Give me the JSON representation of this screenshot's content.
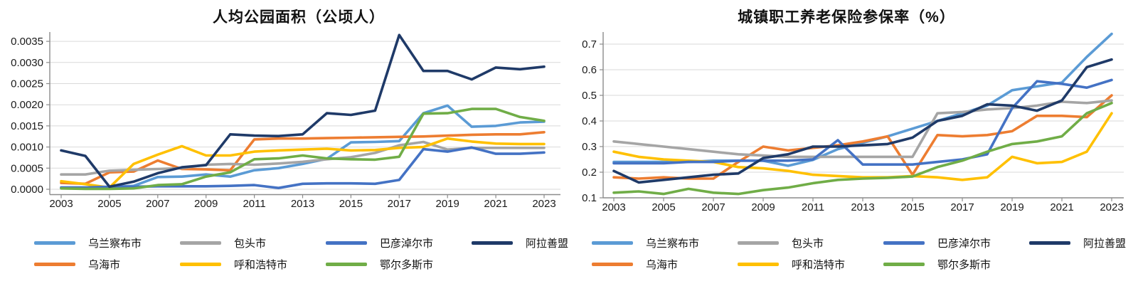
{
  "charts": [
    {
      "title": "人均公园面积（公顷人）",
      "y_axis": {
        "labels": [
          "0.0000",
          "0.0005",
          "0.0010",
          "0.0015",
          "0.0020",
          "0.0025",
          "0.0030",
          "0.0035"
        ],
        "min": 0,
        "step": 0.0005
      },
      "x_axis": {
        "years": [
          2003,
          2004,
          2005,
          2006,
          2007,
          2008,
          2009,
          2010,
          2011,
          2012,
          2013,
          2014,
          2015,
          2016,
          2017,
          2018,
          2019,
          2020,
          2021,
          2022,
          2023
        ],
        "tick_labels": [
          "2003",
          "2005",
          "2007",
          "2009",
          "2011",
          "2013",
          "2015",
          "2017",
          "2019",
          "2021",
          "2023"
        ]
      },
      "series": [
        {
          "name": "乌兰察布市",
          "color": "#5B9BD5",
          "values": [
            4e-05,
            4e-05,
            5e-05,
            8e-05,
            0.00029,
            0.0003,
            0.00035,
            0.0003,
            0.00045,
            0.0005,
            0.0006,
            0.00072,
            0.00111,
            0.00112,
            0.00114,
            0.0018,
            0.00198,
            0.00148,
            0.0015,
            0.00158,
            0.0016
          ]
        },
        {
          "name": "乌海市",
          "color": "#ED7D31",
          "values": [
            0.00015,
            0.00013,
            0.0004,
            0.00042,
            0.00068,
            0.00048,
            0.00047,
            0.00045,
            0.00118,
            0.0012,
            0.0012,
            0.00121,
            0.00122,
            0.00123,
            0.00124,
            0.00125,
            0.00127,
            0.00129,
            0.0013,
            0.0013,
            0.00135
          ]
        },
        {
          "name": "包头市",
          "color": "#A5A5A5",
          "values": [
            0.00035,
            0.00035,
            0.00044,
            0.00046,
            0.00048,
            0.0005,
            0.00058,
            0.0006,
            0.00058,
            0.00061,
            0.00065,
            0.00071,
            0.00076,
            0.00086,
            0.00104,
            0.00112,
            0.00094,
            0.00098,
            0.00098,
            0.00098,
            0.00098
          ]
        },
        {
          "name": "呼和浩特市",
          "color": "#FFC000",
          "values": [
            0.00019,
            0.00012,
            4e-05,
            0.0006,
            0.00082,
            0.00102,
            0.0008,
            0.0008,
            0.00089,
            0.00092,
            0.00094,
            0.00096,
            0.00092,
            0.00093,
            0.00098,
            0.001,
            0.0012,
            0.00113,
            0.00108,
            0.00107,
            0.00107
          ]
        },
        {
          "name": "巴彦淖尔市",
          "color": "#4472C4",
          "values": [
            4e-05,
            4e-05,
            6e-05,
            6e-05,
            7e-05,
            7e-05,
            7e-05,
            8e-05,
            0.0001,
            3e-05,
            0.00013,
            0.00014,
            0.00014,
            0.00013,
            0.00022,
            0.00095,
            0.00089,
            0.00099,
            0.00084,
            0.00084,
            0.00087
          ]
        },
        {
          "name": "鄂尔多斯市",
          "color": "#70AD47",
          "values": [
            2e-05,
            1e-05,
            1e-05,
            2e-05,
            0.0001,
            0.00012,
            0.0003,
            0.0004,
            0.00071,
            0.00073,
            0.0008,
            0.00073,
            0.00071,
            0.0007,
            0.00077,
            0.00179,
            0.0018,
            0.0019,
            0.0019,
            0.00171,
            0.00162
          ]
        },
        {
          "name": "阿拉善盟",
          "color": "#1F3A68",
          "values": [
            0.00092,
            0.00079,
            6e-05,
            0.00018,
            0.00038,
            0.00052,
            0.00057,
            0.0013,
            0.00127,
            0.00126,
            0.0013,
            0.0018,
            0.00176,
            0.00186,
            0.00365,
            0.0028,
            0.0028,
            0.0026,
            0.00288,
            0.00284,
            0.0029
          ]
        }
      ],
      "legend_rows": [
        [
          {
            "label": "乌兰察布市",
            "color": "#5B9BD5"
          },
          {
            "label": "包头市",
            "color": "#A5A5A5"
          },
          {
            "label": "巴彦淖尔市",
            "color": "#4472C4"
          },
          {
            "label": "阿拉善盟",
            "color": "#1F3A68"
          }
        ],
        [
          {
            "label": "乌海市",
            "color": "#ED7D31"
          },
          {
            "label": "呼和浩特市",
            "color": "#FFC000"
          },
          {
            "label": "鄂尔多斯市",
            "color": "#70AD47"
          }
        ]
      ],
      "chart_data": {
        "type": "line",
        "title": "人均公园面积（公顷人）",
        "x": [
          2003,
          2004,
          2005,
          2006,
          2007,
          2008,
          2009,
          2010,
          2011,
          2012,
          2013,
          2014,
          2015,
          2016,
          2017,
          2018,
          2019,
          2020,
          2021,
          2022,
          2023
        ],
        "ylim": [
          0,
          0.0035
        ],
        "grid": true,
        "legend_position": "bottom"
      }
    },
    {
      "title": "城镇职工养老保险参保率（%）",
      "y_axis": {
        "labels": [
          "0.1",
          "0.2",
          "0.3",
          "0.4",
          "0.5",
          "0.6",
          "0.7"
        ],
        "min": 0.1,
        "step": 0.1
      },
      "x_axis": {
        "years": [
          2003,
          2004,
          2005,
          2006,
          2007,
          2008,
          2009,
          2010,
          2011,
          2012,
          2013,
          2014,
          2015,
          2016,
          2017,
          2018,
          2019,
          2020,
          2021,
          2022,
          2023
        ],
        "tick_labels": [
          "2003",
          "2005",
          "2007",
          "2009",
          "2011",
          "2013",
          "2015",
          "2017",
          "2019",
          "2021",
          "2023"
        ]
      },
      "series": [
        {
          "name": "乌兰察布市",
          "color": "#5B9BD5",
          "values": [
            0.24,
            0.24,
            0.24,
            0.24,
            0.245,
            0.245,
            0.245,
            0.225,
            0.248,
            0.29,
            0.315,
            0.34,
            0.37,
            0.4,
            0.43,
            0.46,
            0.52,
            0.535,
            0.55,
            0.65,
            0.74
          ]
        },
        {
          "name": "乌海市",
          "color": "#ED7D31",
          "values": [
            0.18,
            0.175,
            0.18,
            0.175,
            0.175,
            0.24,
            0.3,
            0.285,
            0.295,
            0.305,
            0.32,
            0.34,
            0.19,
            0.345,
            0.34,
            0.345,
            0.36,
            0.42,
            0.42,
            0.415,
            0.5
          ]
        },
        {
          "name": "包头市",
          "color": "#A5A5A5",
          "values": [
            0.32,
            0.31,
            0.3,
            0.29,
            0.28,
            0.27,
            0.265,
            0.26,
            0.26,
            0.26,
            0.26,
            0.26,
            0.26,
            0.43,
            0.435,
            0.445,
            0.45,
            0.46,
            0.475,
            0.47,
            0.48
          ]
        },
        {
          "name": "呼和浩特市",
          "color": "#FFC000",
          "values": [
            0.28,
            0.26,
            0.25,
            0.245,
            0.24,
            0.22,
            0.215,
            0.205,
            0.19,
            0.185,
            0.18,
            0.18,
            0.185,
            0.18,
            0.17,
            0.18,
            0.26,
            0.235,
            0.24,
            0.28,
            0.43
          ]
        },
        {
          "name": "巴彦淖尔市",
          "color": "#4472C4",
          "values": [
            0.235,
            0.235,
            0.235,
            0.24,
            0.24,
            0.245,
            0.245,
            0.245,
            0.25,
            0.325,
            0.23,
            0.23,
            0.23,
            0.24,
            0.25,
            0.27,
            0.45,
            0.555,
            0.545,
            0.53,
            0.56
          ]
        },
        {
          "name": "鄂尔多斯市",
          "color": "#70AD47",
          "values": [
            0.12,
            0.125,
            0.115,
            0.135,
            0.12,
            0.115,
            0.13,
            0.14,
            0.157,
            0.17,
            0.175,
            0.178,
            0.183,
            0.22,
            0.245,
            0.28,
            0.31,
            0.32,
            0.34,
            0.43,
            0.47
          ]
        },
        {
          "name": "阿拉善盟",
          "color": "#1F3A68",
          "values": [
            0.205,
            0.16,
            0.17,
            0.18,
            0.19,
            0.195,
            0.255,
            0.27,
            0.3,
            0.3,
            0.305,
            0.31,
            0.335,
            0.4,
            0.42,
            0.465,
            0.46,
            0.44,
            0.48,
            0.61,
            0.64
          ]
        }
      ],
      "legend_rows": [
        [
          {
            "label": "乌兰察布市",
            "color": "#5B9BD5"
          },
          {
            "label": "包头市",
            "color": "#A5A5A5"
          },
          {
            "label": "巴彦淖尔市",
            "color": "#4472C4"
          },
          {
            "label": "阿拉善盟",
            "color": "#1F3A68"
          }
        ],
        [
          {
            "label": "乌海市",
            "color": "#ED7D31"
          },
          {
            "label": "呼和浩特市",
            "color": "#FFC000"
          },
          {
            "label": "鄂尔多斯市",
            "color": "#70AD47"
          }
        ]
      ],
      "chart_data": {
        "type": "line",
        "title": "城镇职工养老保险参保率（%）",
        "x": [
          2003,
          2004,
          2005,
          2006,
          2007,
          2008,
          2009,
          2010,
          2011,
          2012,
          2013,
          2014,
          2015,
          2016,
          2017,
          2018,
          2019,
          2020,
          2021,
          2022,
          2023
        ],
        "ylim": [
          0.1,
          0.7
        ],
        "grid": true,
        "legend_position": "bottom"
      }
    }
  ],
  "colors": {
    "gridline": "#D9D9D9",
    "axis": "#8C8C8C",
    "text": "#1A1A1A"
  }
}
